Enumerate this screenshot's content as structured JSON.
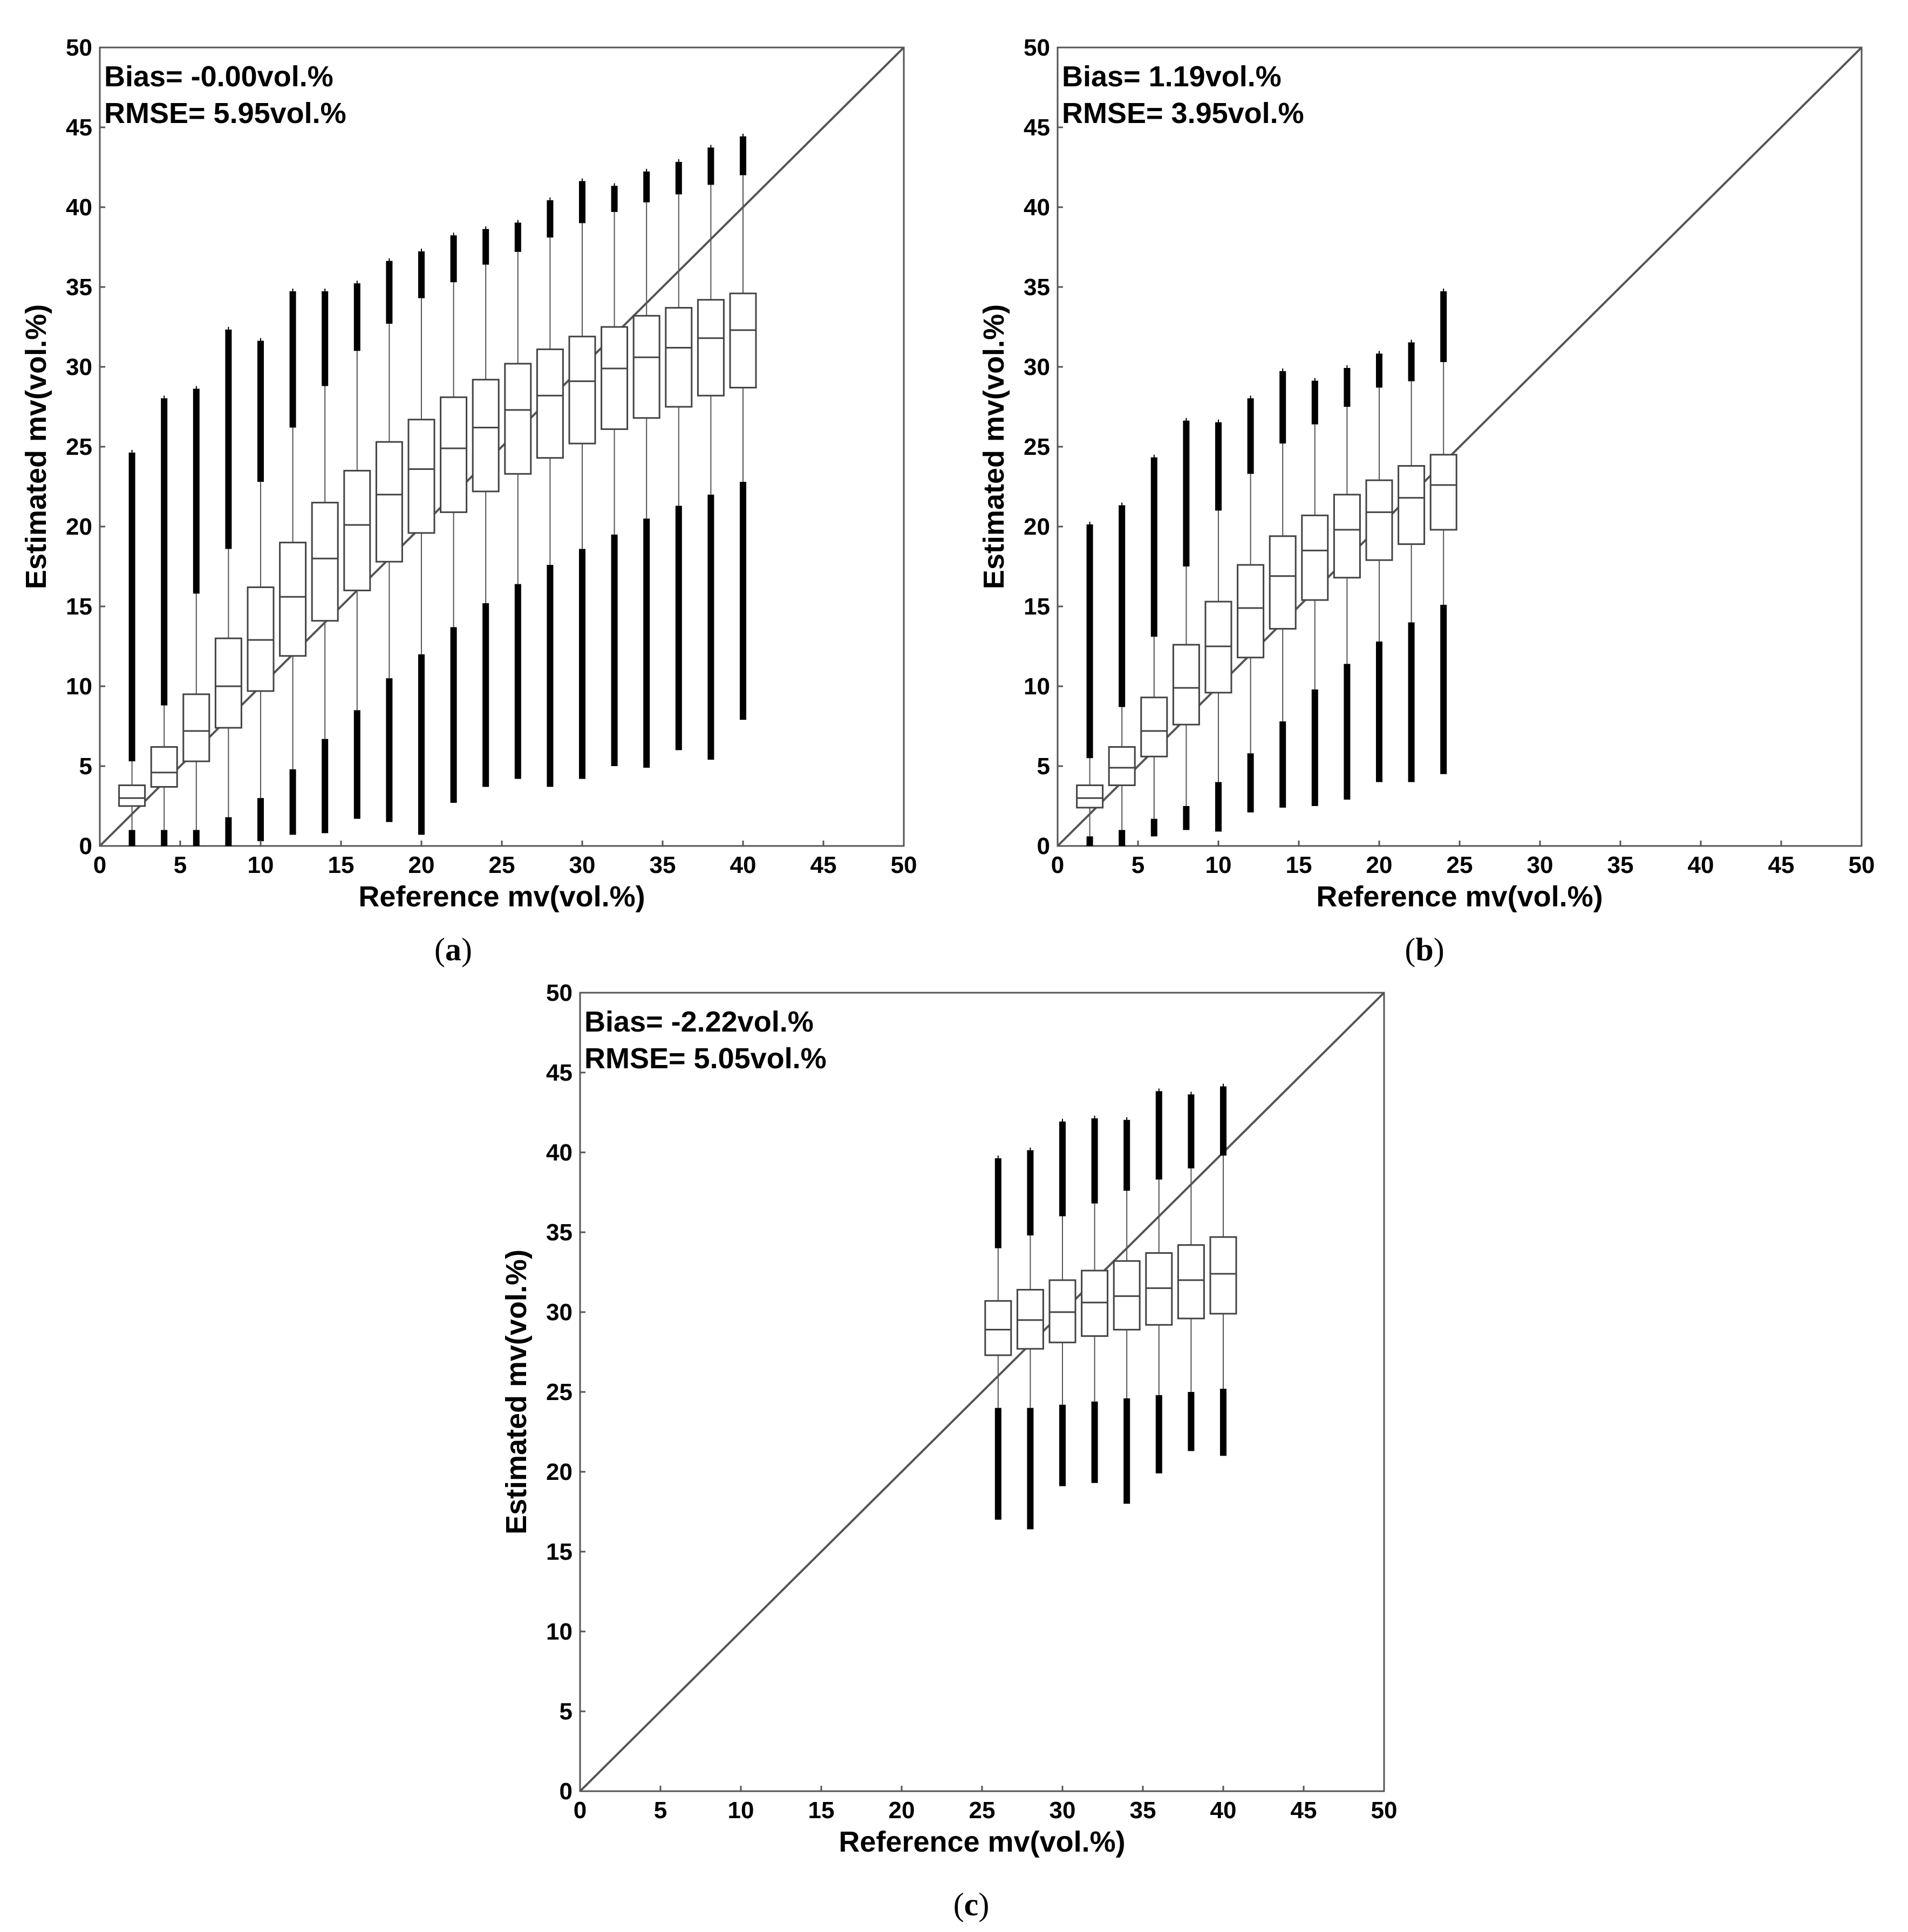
{
  "chart_data": [
    {
      "type": "boxplot",
      "panel_label": "a",
      "title": "",
      "xlabel": "Reference mv(vol.%)",
      "ylabel": "Estimated mv(vol.%)",
      "xlim": [
        0,
        50
      ],
      "ylim": [
        0,
        50
      ],
      "xticks": [
        "0",
        "5",
        "10",
        "15",
        "20",
        "25",
        "30",
        "35",
        "40",
        "45",
        "50"
      ],
      "yticks": [
        "0",
        "5",
        "10",
        "15",
        "20",
        "25",
        "30",
        "35",
        "40",
        "45",
        "50"
      ],
      "annotations": [
        "Bias= -0.00vol.%",
        "RMSE= 5.95vol.%"
      ],
      "reference_line": "1:1",
      "boxes": [
        {
          "x": 2,
          "q1": 2.5,
          "median": 3.0,
          "q3": 3.8,
          "wlo": 1.0,
          "whi": 5.3,
          "olo": 0.0,
          "ohi": 24.6
        },
        {
          "x": 4,
          "q1": 3.7,
          "median": 4.6,
          "q3": 6.2,
          "wlo": 1.0,
          "whi": 8.8,
          "olo": 0.0,
          "ohi": 28.0
        },
        {
          "x": 6,
          "q1": 5.3,
          "median": 7.2,
          "q3": 9.5,
          "wlo": 1.0,
          "whi": 15.8,
          "olo": 0.0,
          "ohi": 28.6
        },
        {
          "x": 8,
          "q1": 7.4,
          "median": 10.0,
          "q3": 13.0,
          "wlo": 1.8,
          "whi": 18.6,
          "olo": 0.0,
          "ohi": 32.3
        },
        {
          "x": 10,
          "q1": 9.7,
          "median": 12.9,
          "q3": 16.2,
          "wlo": 3.0,
          "whi": 22.8,
          "olo": 0.3,
          "ohi": 31.6
        },
        {
          "x": 12,
          "q1": 11.9,
          "median": 15.6,
          "q3": 19.0,
          "wlo": 4.8,
          "whi": 26.2,
          "olo": 0.7,
          "ohi": 34.7
        },
        {
          "x": 14,
          "q1": 14.1,
          "median": 18.0,
          "q3": 21.5,
          "wlo": 6.7,
          "whi": 28.8,
          "olo": 0.8,
          "ohi": 34.7
        },
        {
          "x": 16,
          "q1": 16.0,
          "median": 20.1,
          "q3": 23.5,
          "wlo": 8.5,
          "whi": 31.0,
          "olo": 1.7,
          "ohi": 35.2
        },
        {
          "x": 18,
          "q1": 17.8,
          "median": 22.0,
          "q3": 25.3,
          "wlo": 10.5,
          "whi": 32.7,
          "olo": 1.5,
          "ohi": 36.6
        },
        {
          "x": 20,
          "q1": 19.6,
          "median": 23.6,
          "q3": 26.7,
          "wlo": 12.0,
          "whi": 34.3,
          "olo": 0.7,
          "ohi": 37.2
        },
        {
          "x": 22,
          "q1": 20.9,
          "median": 24.9,
          "q3": 28.1,
          "wlo": 13.7,
          "whi": 35.3,
          "olo": 2.7,
          "ohi": 38.2
        },
        {
          "x": 24,
          "q1": 22.2,
          "median": 26.2,
          "q3": 29.2,
          "wlo": 15.2,
          "whi": 36.4,
          "olo": 3.7,
          "ohi": 38.6
        },
        {
          "x": 26,
          "q1": 23.3,
          "median": 27.3,
          "q3": 30.2,
          "wlo": 16.4,
          "whi": 37.2,
          "olo": 4.2,
          "ohi": 39.0
        },
        {
          "x": 28,
          "q1": 24.3,
          "median": 28.2,
          "q3": 31.1,
          "wlo": 17.6,
          "whi": 38.1,
          "olo": 3.7,
          "ohi": 40.4
        },
        {
          "x": 30,
          "q1": 25.2,
          "median": 29.1,
          "q3": 31.9,
          "wlo": 18.6,
          "whi": 39.0,
          "olo": 4.2,
          "ohi": 41.6
        },
        {
          "x": 32,
          "q1": 26.1,
          "median": 29.9,
          "q3": 32.5,
          "wlo": 19.5,
          "whi": 39.7,
          "olo": 5.0,
          "ohi": 41.3
        },
        {
          "x": 34,
          "q1": 26.8,
          "median": 30.6,
          "q3": 33.2,
          "wlo": 20.5,
          "whi": 40.3,
          "olo": 4.9,
          "ohi": 42.2
        },
        {
          "x": 36,
          "q1": 27.5,
          "median": 31.2,
          "q3": 33.7,
          "wlo": 21.3,
          "whi": 40.8,
          "olo": 6.0,
          "ohi": 42.8
        },
        {
          "x": 38,
          "q1": 28.2,
          "median": 31.8,
          "q3": 34.2,
          "wlo": 22.0,
          "whi": 41.4,
          "olo": 5.4,
          "ohi": 43.7
        },
        {
          "x": 40,
          "q1": 28.7,
          "median": 32.3,
          "q3": 34.6,
          "wlo": 22.8,
          "whi": 42.0,
          "olo": 7.9,
          "ohi": 44.4
        }
      ]
    },
    {
      "type": "boxplot",
      "panel_label": "b",
      "title": "",
      "xlabel": "Reference mv(vol.%)",
      "ylabel": "Estimated mv(vol.%)",
      "xlim": [
        0,
        50
      ],
      "ylim": [
        0,
        50
      ],
      "xticks": [
        "0",
        "5",
        "10",
        "15",
        "20",
        "25",
        "30",
        "35",
        "40",
        "45",
        "50"
      ],
      "yticks": [
        "0",
        "5",
        "10",
        "15",
        "20",
        "25",
        "30",
        "35",
        "40",
        "45",
        "50"
      ],
      "annotations": [
        "Bias= 1.19vol.%",
        "RMSE= 3.95vol.%"
      ],
      "reference_line": "1:1",
      "boxes": [
        {
          "x": 2,
          "q1": 2.4,
          "median": 3.0,
          "q3": 3.8,
          "wlo": 0.6,
          "whi": 5.5,
          "olo": 0.0,
          "ohi": 20.1
        },
        {
          "x": 4,
          "q1": 3.8,
          "median": 4.9,
          "q3": 6.2,
          "wlo": 1.0,
          "whi": 8.7,
          "olo": 0.0,
          "ohi": 21.3
        },
        {
          "x": 6,
          "q1": 5.6,
          "median": 7.2,
          "q3": 9.3,
          "wlo": 1.7,
          "whi": 13.1,
          "olo": 0.6,
          "ohi": 24.3
        },
        {
          "x": 8,
          "q1": 7.6,
          "median": 9.9,
          "q3": 12.6,
          "wlo": 2.5,
          "whi": 17.5,
          "olo": 1.0,
          "ohi": 26.6
        },
        {
          "x": 10,
          "q1": 9.6,
          "median": 12.5,
          "q3": 15.3,
          "wlo": 4.0,
          "whi": 21.0,
          "olo": 0.9,
          "ohi": 26.5
        },
        {
          "x": 12,
          "q1": 11.8,
          "median": 14.9,
          "q3": 17.6,
          "wlo": 5.8,
          "whi": 23.3,
          "olo": 2.1,
          "ohi": 28.0
        },
        {
          "x": 14,
          "q1": 13.6,
          "median": 16.9,
          "q3": 19.4,
          "wlo": 7.8,
          "whi": 25.2,
          "olo": 2.4,
          "ohi": 29.7
        },
        {
          "x": 16,
          "q1": 15.4,
          "median": 18.5,
          "q3": 20.7,
          "wlo": 9.8,
          "whi": 26.4,
          "olo": 2.5,
          "ohi": 29.1
        },
        {
          "x": 18,
          "q1": 16.8,
          "median": 19.8,
          "q3": 22.0,
          "wlo": 11.4,
          "whi": 27.5,
          "olo": 2.9,
          "ohi": 29.9
        },
        {
          "x": 20,
          "q1": 17.9,
          "median": 20.9,
          "q3": 22.9,
          "wlo": 12.8,
          "whi": 28.7,
          "olo": 4.0,
          "ohi": 30.8
        },
        {
          "x": 22,
          "q1": 18.9,
          "median": 21.8,
          "q3": 23.8,
          "wlo": 14.0,
          "whi": 29.1,
          "olo": 4.0,
          "ohi": 31.5
        },
        {
          "x": 24,
          "q1": 19.8,
          "median": 22.6,
          "q3": 24.5,
          "wlo": 15.1,
          "whi": 30.3,
          "olo": 4.5,
          "ohi": 34.7
        }
      ]
    },
    {
      "type": "boxplot",
      "panel_label": "c",
      "title": "",
      "xlabel": "Reference mv(vol.%)",
      "ylabel": "Estimated mv(vol.%)",
      "xlim": [
        0,
        50
      ],
      "ylim": [
        0,
        50
      ],
      "xticks": [
        "0",
        "5",
        "10",
        "15",
        "20",
        "25",
        "30",
        "35",
        "40",
        "45",
        "50"
      ],
      "yticks": [
        "0",
        "5",
        "10",
        "15",
        "20",
        "25",
        "30",
        "35",
        "40",
        "45",
        "50"
      ],
      "annotations": [
        "Bias= -2.22vol.%",
        "RMSE= 5.05vol.%"
      ],
      "reference_line": "1:1",
      "boxes": [
        {
          "x": 26,
          "q1": 27.3,
          "median": 28.9,
          "q3": 30.7,
          "wlo": 24.0,
          "whi": 34.0,
          "olo": 17.0,
          "ohi": 39.6
        },
        {
          "x": 28,
          "q1": 27.7,
          "median": 29.5,
          "q3": 31.4,
          "wlo": 24.0,
          "whi": 34.8,
          "olo": 16.4,
          "ohi": 40.1
        },
        {
          "x": 30,
          "q1": 28.1,
          "median": 30.0,
          "q3": 32.0,
          "wlo": 24.2,
          "whi": 36.0,
          "olo": 19.1,
          "ohi": 41.9
        },
        {
          "x": 32,
          "q1": 28.5,
          "median": 30.6,
          "q3": 32.6,
          "wlo": 24.4,
          "whi": 36.8,
          "olo": 19.3,
          "ohi": 42.1
        },
        {
          "x": 34,
          "q1": 28.9,
          "median": 31.0,
          "q3": 33.2,
          "wlo": 24.6,
          "whi": 37.6,
          "olo": 18.0,
          "ohi": 42.0
        },
        {
          "x": 36,
          "q1": 29.2,
          "median": 31.5,
          "q3": 33.7,
          "wlo": 24.8,
          "whi": 38.3,
          "olo": 19.9,
          "ohi": 43.8
        },
        {
          "x": 38,
          "q1": 29.6,
          "median": 32.0,
          "q3": 34.2,
          "wlo": 25.0,
          "whi": 39.0,
          "olo": 21.3,
          "ohi": 43.6
        },
        {
          "x": 40,
          "q1": 29.9,
          "median": 32.4,
          "q3": 34.7,
          "wlo": 25.2,
          "whi": 39.8,
          "olo": 21.0,
          "ohi": 44.1
        }
      ]
    }
  ]
}
